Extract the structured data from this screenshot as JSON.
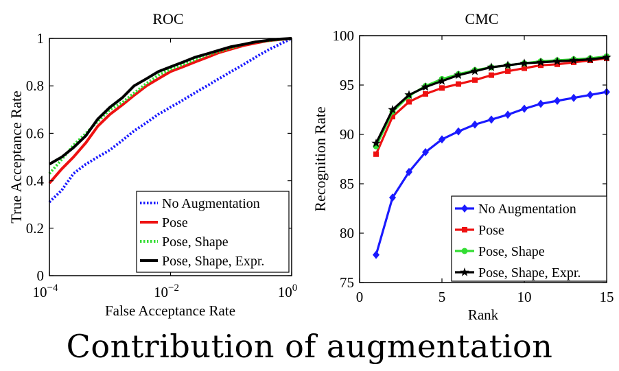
{
  "caption": "Contribution of augmentation",
  "chart_data": [
    {
      "type": "line",
      "title": "ROC",
      "xlabel": "False Acceptance Rate",
      "ylabel": "True Acceptance Rate",
      "xscale": "log",
      "xlim": [
        0.0001,
        1
      ],
      "ylim": [
        0,
        1
      ],
      "xticks": [
        {
          "value": 0.0001,
          "base": "10",
          "exp": "−4"
        },
        {
          "value": 0.01,
          "base": "10",
          "exp": "−2"
        },
        {
          "value": 1,
          "base": "10",
          "exp": "0"
        }
      ],
      "yticks": [
        {
          "value": 0,
          "label": "0"
        },
        {
          "value": 0.2,
          "label": "0.2"
        },
        {
          "value": 0.4,
          "label": "0.4"
        },
        {
          "value": 0.6,
          "label": "0.6"
        },
        {
          "value": 0.8,
          "label": "0.8"
        },
        {
          "value": 1,
          "label": "1"
        }
      ],
      "grid": false,
      "legend_position": "bottom-right",
      "series": [
        {
          "name": "No Augmentation",
          "color": "#1a1aff",
          "style": "dotted",
          "x": [
            0.0001,
            0.00016,
            0.00025,
            0.0004,
            0.00063,
            0.001,
            0.0016,
            0.0025,
            0.004,
            0.0063,
            0.01,
            0.016,
            0.025,
            0.04,
            0.063,
            0.1,
            0.16,
            0.25,
            0.4,
            0.63,
            1
          ],
          "y": [
            0.31,
            0.36,
            0.43,
            0.47,
            0.5,
            0.53,
            0.57,
            0.61,
            0.645,
            0.68,
            0.71,
            0.74,
            0.77,
            0.8,
            0.83,
            0.86,
            0.89,
            0.92,
            0.95,
            0.975,
            1.0
          ]
        },
        {
          "name": "Pose",
          "color": "#ee1111",
          "style": "solid",
          "x": [
            0.0001,
            0.00016,
            0.00025,
            0.0004,
            0.00063,
            0.001,
            0.0016,
            0.0025,
            0.004,
            0.0063,
            0.01,
            0.016,
            0.025,
            0.04,
            0.063,
            0.1,
            0.16,
            0.25,
            0.4,
            0.63,
            1
          ],
          "y": [
            0.39,
            0.45,
            0.5,
            0.56,
            0.63,
            0.68,
            0.72,
            0.76,
            0.8,
            0.83,
            0.86,
            0.88,
            0.9,
            0.92,
            0.94,
            0.955,
            0.97,
            0.98,
            0.99,
            0.995,
            1.0
          ]
        },
        {
          "name": "Pose, Shape",
          "color": "#33dd33",
          "style": "dotted",
          "x": [
            0.0001,
            0.00016,
            0.00025,
            0.0004,
            0.00063,
            0.001,
            0.0016,
            0.0025,
            0.004,
            0.0063,
            0.01,
            0.016,
            0.025,
            0.04,
            0.063,
            0.1,
            0.16,
            0.25,
            0.4,
            0.63,
            1
          ],
          "y": [
            0.43,
            0.49,
            0.55,
            0.6,
            0.65,
            0.7,
            0.73,
            0.77,
            0.81,
            0.845,
            0.87,
            0.89,
            0.91,
            0.93,
            0.945,
            0.96,
            0.975,
            0.985,
            0.99,
            0.995,
            1.0
          ]
        },
        {
          "name": "Pose, Shape, Expr.",
          "color": "#000000",
          "style": "solid",
          "x": [
            0.0001,
            0.00016,
            0.00025,
            0.0004,
            0.00063,
            0.001,
            0.0016,
            0.0025,
            0.004,
            0.0063,
            0.01,
            0.016,
            0.025,
            0.04,
            0.063,
            0.1,
            0.16,
            0.25,
            0.4,
            0.63,
            1
          ],
          "y": [
            0.47,
            0.5,
            0.54,
            0.59,
            0.66,
            0.71,
            0.75,
            0.8,
            0.83,
            0.86,
            0.88,
            0.9,
            0.92,
            0.935,
            0.95,
            0.965,
            0.975,
            0.985,
            0.992,
            0.997,
            1.0
          ]
        }
      ]
    },
    {
      "type": "line",
      "title": "CMC",
      "xlabel": "Rank",
      "ylabel": "Recognition Rate",
      "xlim": [
        0,
        15
      ],
      "ylim": [
        75,
        100
      ],
      "xticks": [
        0,
        5,
        10,
        15
      ],
      "yticks": [
        75,
        80,
        85,
        90,
        95,
        100
      ],
      "grid": false,
      "legend_position": "bottom-right",
      "x": [
        1,
        2,
        3,
        4,
        5,
        6,
        7,
        8,
        9,
        10,
        11,
        12,
        13,
        14,
        15
      ],
      "series": [
        {
          "name": "No Augmentation",
          "color": "#1a1aff",
          "marker": "diamond",
          "values": [
            77.8,
            83.6,
            86.2,
            88.2,
            89.5,
            90.3,
            91.0,
            91.5,
            92.0,
            92.6,
            93.1,
            93.4,
            93.7,
            94.0,
            94.3
          ]
        },
        {
          "name": "Pose",
          "color": "#ee1111",
          "marker": "square",
          "values": [
            88.0,
            91.8,
            93.3,
            94.1,
            94.7,
            95.1,
            95.5,
            96.0,
            96.4,
            96.7,
            97.0,
            97.1,
            97.3,
            97.5,
            97.7
          ]
        },
        {
          "name": "Pose, Shape",
          "color": "#33dd33",
          "marker": "circle",
          "values": [
            88.8,
            92.3,
            93.9,
            94.9,
            95.6,
            96.1,
            96.5,
            96.8,
            97.0,
            97.2,
            97.4,
            97.5,
            97.6,
            97.7,
            97.9
          ]
        },
        {
          "name": "Pose, Shape, Expr.",
          "color": "#000000",
          "marker": "star",
          "values": [
            89.1,
            92.5,
            94.0,
            94.8,
            95.4,
            96.0,
            96.4,
            96.8,
            97.0,
            97.2,
            97.3,
            97.4,
            97.5,
            97.6,
            97.8
          ]
        }
      ]
    }
  ]
}
